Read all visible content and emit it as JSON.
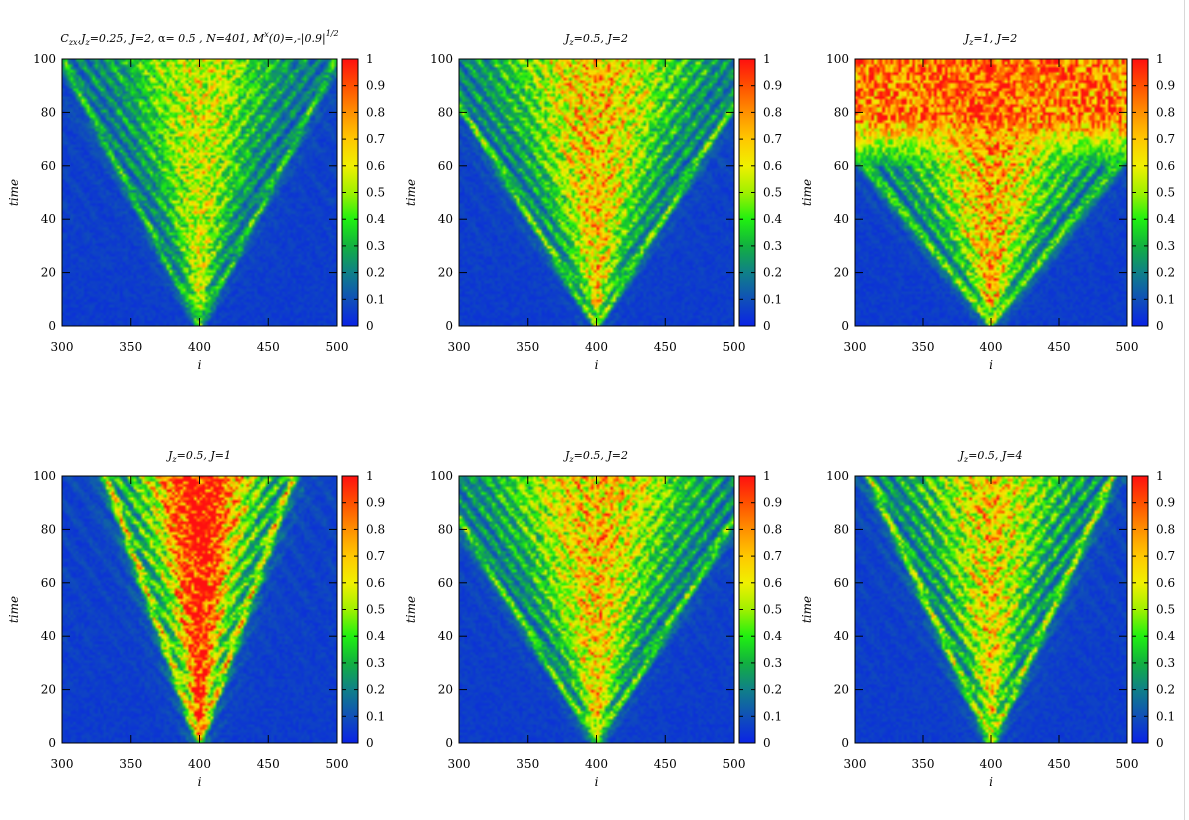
{
  "colormap": {
    "stops": [
      [
        0.0,
        "#0a23e6"
      ],
      [
        0.1,
        "#1050b8"
      ],
      [
        0.2,
        "#108088"
      ],
      [
        0.3,
        "#12b040"
      ],
      [
        0.4,
        "#20f010"
      ],
      [
        0.5,
        "#a0f000"
      ],
      [
        0.6,
        "#f0f000"
      ],
      [
        0.7,
        "#ffc800"
      ],
      [
        0.8,
        "#ff9000"
      ],
      [
        0.9,
        "#ff5000"
      ],
      [
        1.0,
        "#ff1010"
      ]
    ]
  },
  "chart_data": [
    {
      "type": "heatmap",
      "title_html": "C<tspan font-size='8' dy='3'>zx</tspan><tspan dy='-3'>,J</tspan><tspan font-size='8' dy='3'>z</tspan><tspan dy='-3'>=0.25,  J=2, </tspan><tspan font-style='normal'>α</tspan><tspan>= 0.5 , N=401,   M</tspan><tspan font-size='8' dy='-5'>x</tspan><tspan dy='5'>(0)=,-|0.9|</tspan><tspan font-size='8' dy='-6'>1/2</tspan>",
      "xlabel": "i",
      "ylabel": "time",
      "xlim": [
        300,
        500
      ],
      "ylim": [
        0,
        100
      ],
      "xticks": [
        "300",
        "350",
        "400",
        "450",
        "500"
      ],
      "yticks": [
        "0",
        "20",
        "40",
        "60",
        "80",
        "100"
      ],
      "cbticks": [
        "0",
        "0.1",
        "0.2",
        "0.3",
        "0.4",
        "0.5",
        "0.6",
        "0.7",
        "0.8",
        "0.9",
        "1"
      ],
      "cone": {
        "center": 400,
        "speed": 1.0,
        "core": 0.42,
        "halo": 0.16,
        "red_front": null
      }
    },
    {
      "type": "heatmap",
      "title_html": "J<tspan font-size='8' dy='3'>z</tspan><tspan dy='-3'>=0.5,  J=2</tspan>",
      "xlabel": "i",
      "ylabel": "time",
      "xlim": [
        300,
        500
      ],
      "ylim": [
        0,
        100
      ],
      "xticks": [
        "300",
        "350",
        "400",
        "450",
        "500"
      ],
      "yticks": [
        "0",
        "20",
        "40",
        "60",
        "80",
        "100"
      ],
      "cbticks": [
        "0",
        "0.1",
        "0.2",
        "0.3",
        "0.4",
        "0.5",
        "0.6",
        "0.7",
        "0.8",
        "0.9",
        "1"
      ],
      "cone": {
        "center": 400,
        "speed": 1.2,
        "core": 0.52,
        "halo": 0.2,
        "red_front": null
      }
    },
    {
      "type": "heatmap",
      "title_html": "J<tspan font-size='8' dy='3'>z</tspan><tspan dy='-3'>=1,  J=2</tspan>",
      "xlabel": "i",
      "ylabel": "time",
      "xlim": [
        300,
        500
      ],
      "ylim": [
        0,
        100
      ],
      "xticks": [
        "300",
        "350",
        "400",
        "450",
        "500"
      ],
      "yticks": [
        "0",
        "20",
        "40",
        "60",
        "80",
        "100"
      ],
      "cbticks": [
        "0",
        "0.1",
        "0.2",
        "0.3",
        "0.4",
        "0.5",
        "0.6",
        "0.7",
        "0.8",
        "0.9",
        "1"
      ],
      "cone": {
        "center": 400,
        "speed": 1.55,
        "core": 0.55,
        "halo": 0.22,
        "red_front": 60
      }
    },
    {
      "type": "heatmap",
      "title_html": "J<tspan font-size='8' dy='3'>z</tspan><tspan dy='-3'>=0.5,  J=1</tspan>",
      "xlabel": "i",
      "ylabel": "time",
      "xlim": [
        300,
        500
      ],
      "ylim": [
        0,
        100
      ],
      "xticks": [
        "300",
        "350",
        "400",
        "450",
        "500"
      ],
      "yticks": [
        "0",
        "20",
        "40",
        "60",
        "80",
        "100"
      ],
      "cbticks": [
        "0",
        "0.1",
        "0.2",
        "0.3",
        "0.4",
        "0.5",
        "0.6",
        "0.7",
        "0.8",
        "0.9",
        "1"
      ],
      "cone": {
        "center": 400,
        "speed": 0.68,
        "core": 0.85,
        "halo": 0.3,
        "red_front": null
      }
    },
    {
      "type": "heatmap",
      "title_html": "J<tspan font-size='8' dy='3'>z</tspan><tspan dy='-3'>=0.5,  J=2</tspan>",
      "xlabel": "i",
      "ylabel": "time",
      "xlim": [
        300,
        500
      ],
      "ylim": [
        0,
        100
      ],
      "xticks": [
        "300",
        "350",
        "400",
        "450",
        "500"
      ],
      "yticks": [
        "0",
        "20",
        "40",
        "60",
        "80",
        "100"
      ],
      "cbticks": [
        "0",
        "0.1",
        "0.2",
        "0.3",
        "0.4",
        "0.5",
        "0.6",
        "0.7",
        "0.8",
        "0.9",
        "1"
      ],
      "cone": {
        "center": 400,
        "speed": 1.2,
        "core": 0.52,
        "halo": 0.2,
        "red_front": null
      }
    },
    {
      "type": "heatmap",
      "title_html": "J<tspan font-size='8' dy='3'>z</tspan><tspan dy='-3'>=0.5,  J=4</tspan>",
      "xlabel": "i",
      "ylabel": "time",
      "xlim": [
        300,
        500
      ],
      "ylim": [
        0,
        100
      ],
      "xticks": [
        "300",
        "350",
        "400",
        "450",
        "500"
      ],
      "yticks": [
        "0",
        "20",
        "40",
        "60",
        "80",
        "100"
      ],
      "cbticks": [
        "0",
        "0.1",
        "0.2",
        "0.3",
        "0.4",
        "0.5",
        "0.6",
        "0.7",
        "0.8",
        "0.9",
        "1"
      ],
      "cone": {
        "center": 400,
        "speed": 0.9,
        "core": 0.45,
        "halo": 0.25,
        "red_front": null
      }
    }
  ]
}
